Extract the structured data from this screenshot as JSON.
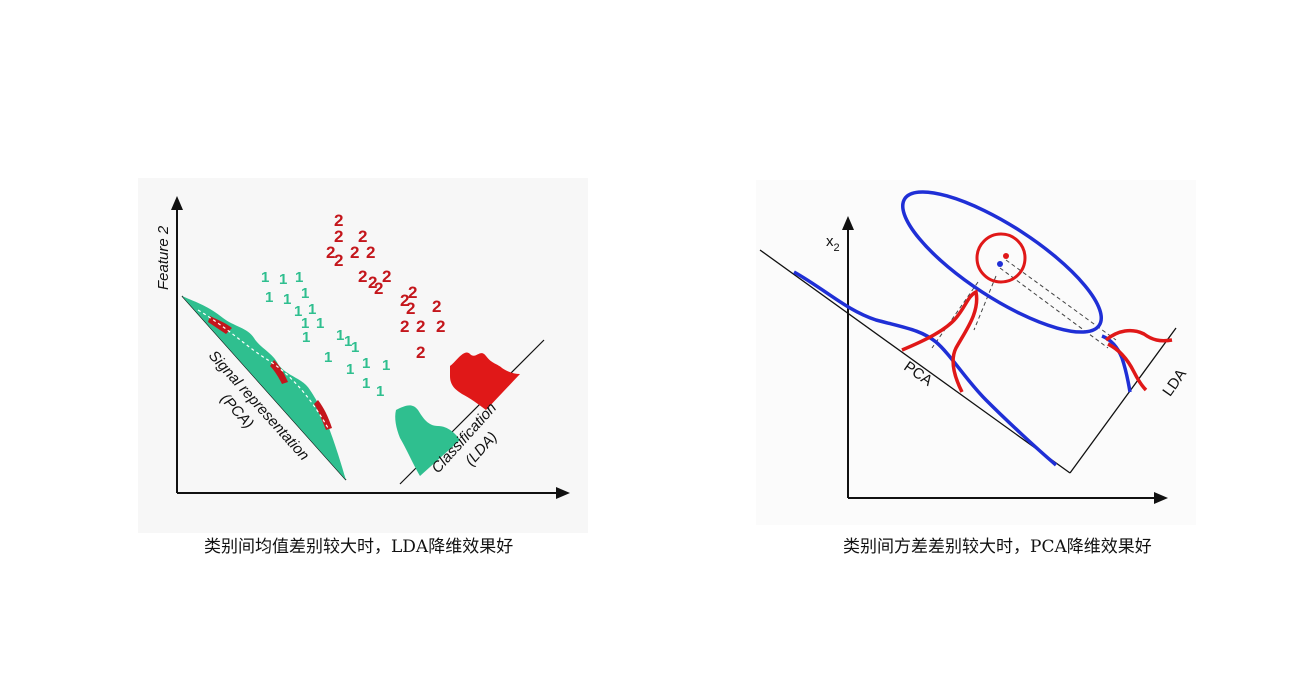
{
  "left_figure": {
    "y_axis_label": "Feature 2",
    "pca_label_line1": "Signal representation",
    "pca_label_line2": "(PCA)",
    "lda_label_line1": "Classification",
    "lda_label_line2": "(LDA)",
    "class1_marker": "1",
    "class2_marker": "2",
    "colors": {
      "class1": "#2fbf8f",
      "class2": "#c4161c"
    }
  },
  "right_figure": {
    "y_axis_label": "x",
    "y_axis_subscript": "2",
    "pca_axis_label": "PCA",
    "lda_axis_label": "LDA",
    "colors": {
      "class1": "#1f2fd6",
      "class2": "#e01818"
    }
  },
  "captions": {
    "left": "类别间均值差别较大时，LDA降维效果好",
    "right": "类别间方差差别较大时，PCA降维效果好"
  }
}
